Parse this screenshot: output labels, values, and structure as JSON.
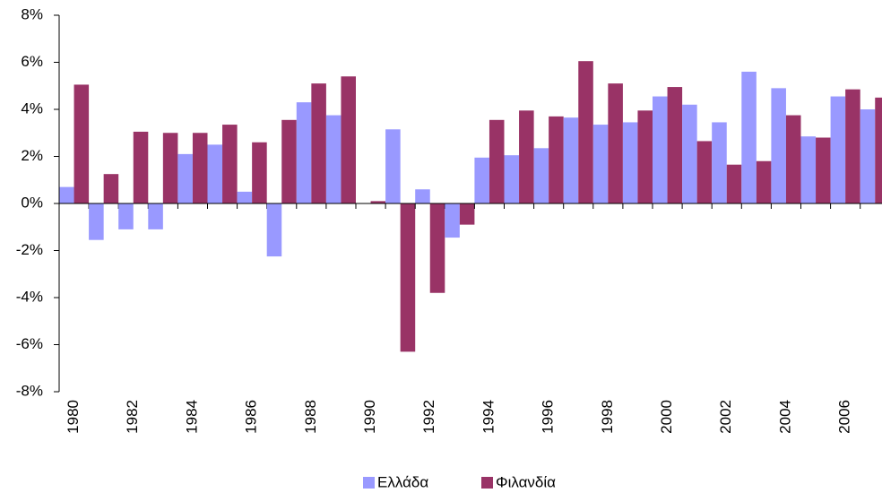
{
  "chart_data": {
    "type": "bar",
    "categories": [
      "1980",
      null,
      "1982",
      null,
      "1984",
      null,
      "1986",
      null,
      "1988",
      null,
      "1990",
      null,
      "1992",
      null,
      "1994",
      null,
      "1996",
      null,
      "1998",
      null,
      "2000",
      null,
      "2002",
      null,
      "2004",
      null,
      "2006",
      null
    ],
    "series": [
      {
        "name": "Ελλάδα",
        "color": "#9999ff",
        "values": [
          0.7,
          -1.55,
          -1.1,
          -1.1,
          2.1,
          2.5,
          0.5,
          -2.25,
          4.3,
          3.75,
          0.0,
          3.15,
          0.6,
          -1.45,
          1.95,
          2.05,
          2.35,
          3.65,
          3.35,
          3.45,
          4.55,
          4.2,
          3.45,
          5.6,
          4.9,
          2.85,
          4.55,
          4.0
        ]
      },
      {
        "name": "Φιλανδία",
        "color": "#993366",
        "values": [
          5.05,
          1.25,
          3.05,
          3.0,
          3.0,
          3.35,
          2.6,
          3.55,
          5.1,
          5.4,
          0.1,
          -6.3,
          -3.8,
          -0.9,
          3.55,
          3.95,
          3.7,
          6.05,
          5.1,
          3.95,
          4.95,
          2.65,
          1.65,
          1.8,
          3.75,
          2.8,
          4.85,
          4.5
        ]
      }
    ],
    "ylim": [
      -8,
      8
    ],
    "yticks": [
      {
        "value": -8,
        "label": "-8%"
      },
      {
        "value": -6,
        "label": "-6%"
      },
      {
        "value": -4,
        "label": "-4%"
      },
      {
        "value": -2,
        "label": "-2%"
      },
      {
        "value": 0,
        "label": "0%"
      },
      {
        "value": 2,
        "label": "2%"
      },
      {
        "value": 4,
        "label": "4%"
      },
      {
        "value": 6,
        "label": "6%"
      },
      {
        "value": 8,
        "label": "8%"
      }
    ],
    "legend": "bottom"
  }
}
